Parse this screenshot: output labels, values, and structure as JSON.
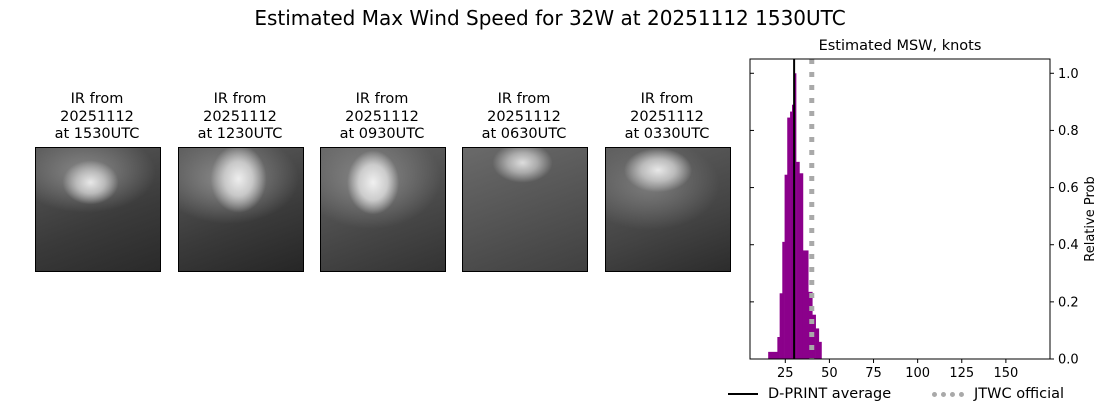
{
  "title": "Estimated Max Wind Speed for 32W at 20251112 1530UTC",
  "ir_images": [
    {
      "line1": "IR from",
      "line2": "20251112",
      "line3": "at 1530UTC"
    },
    {
      "line1": "IR from",
      "line2": "20251112",
      "line3": "at 1230UTC"
    },
    {
      "line1": "IR from",
      "line2": "20251112",
      "line3": "at 0930UTC"
    },
    {
      "line1": "IR from",
      "line2": "20251112",
      "line3": "at 0630UTC"
    },
    {
      "line1": "IR from",
      "line2": "20251112",
      "line3": "at 0330UTC"
    }
  ],
  "chart_data": {
    "type": "bar",
    "title": "Estimated MSW, knots",
    "xlabel": "",
    "ylabel": "Relative Prob",
    "xlim": [
      5,
      175
    ],
    "ylim": [
      0,
      1.05
    ],
    "xticks": [
      25,
      50,
      75,
      100,
      125,
      150
    ],
    "yticks": [
      0.0,
      0.2,
      0.4,
      0.6,
      0.8,
      1.0
    ],
    "ytick_labels": [
      "0.0",
      "0.2",
      "0.4",
      "0.6",
      "0.8",
      "1.0"
    ],
    "y_axis_side": "right",
    "bar_color": "#8b008b",
    "bin_edges": [
      15.3,
      20.5,
      21.8,
      23.3,
      24.6,
      26.1,
      27.7,
      28.8,
      29.7,
      31.1,
      33.0,
      35.0,
      38.0,
      40.3,
      42.2,
      44.0,
      45.5
    ],
    "values": [
      0.025,
      0.077,
      0.23,
      0.41,
      0.645,
      0.845,
      0.866,
      0.89,
      1.0,
      0.69,
      0.65,
      0.38,
      0.235,
      0.155,
      0.107,
      0.06
    ],
    "dprint_average": 30,
    "jtwc_official": 40,
    "legend": [
      {
        "label": "D-PRINT average",
        "color": "#000000",
        "style": "solid"
      },
      {
        "label": "JTWC official",
        "color": "#a9a9a9",
        "style": "dotted"
      }
    ],
    "legend_placement": "bottom"
  }
}
